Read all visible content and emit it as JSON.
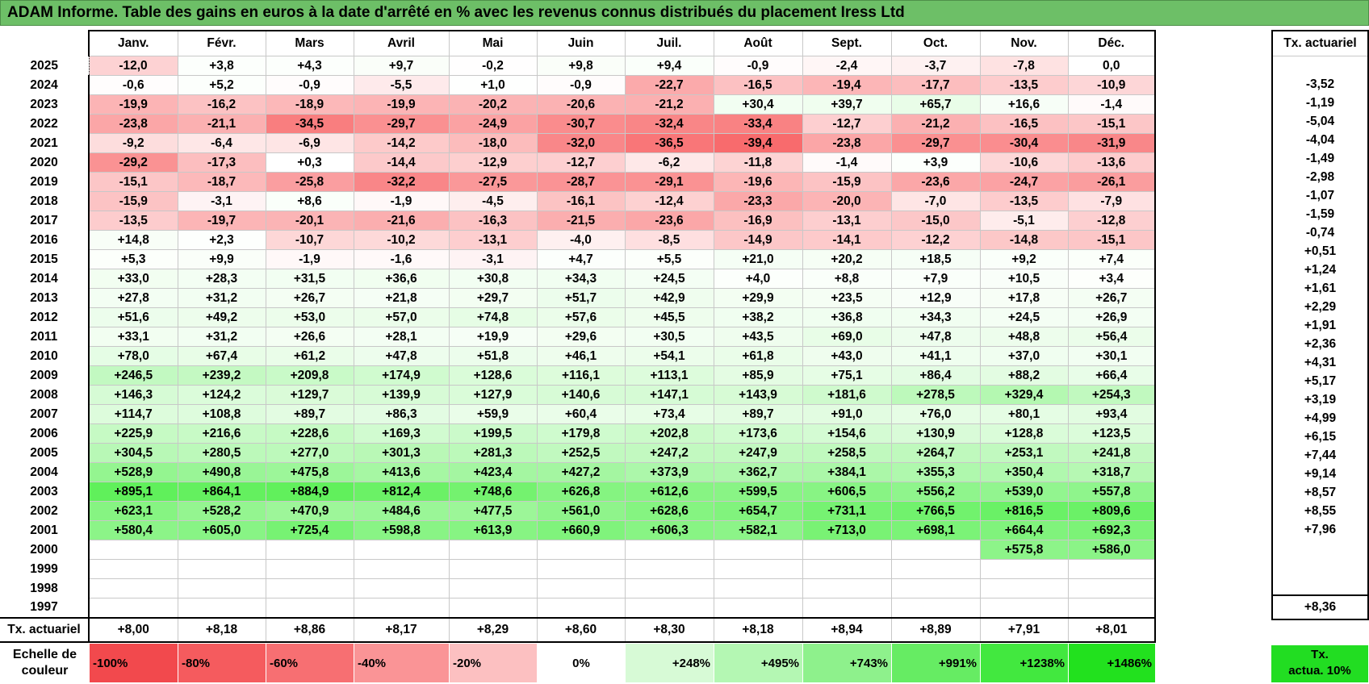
{
  "title": "ADAM Informe. Table des gains en euros à la date d'arrêté en % avec les revenus connus distribués du placement Iress Ltd",
  "months": [
    "Janv.",
    "Févr.",
    "Mars",
    "Avril",
    "Mai",
    "Juin",
    "Juil.",
    "Août",
    "Sept.",
    "Oct.",
    "Nov.",
    "Déc."
  ],
  "tx_header": "Tx. actuariel",
  "rows": [
    {
      "year": "2025",
      "values": [
        "-12,0",
        "+3,8",
        "+4,3",
        "+9,7",
        "-0,2",
        "+9,8",
        "+9,4",
        "-0,9",
        "-2,4",
        "-3,7",
        "-7,8",
        "0,0"
      ],
      "tx": ""
    },
    {
      "year": "2024",
      "values": [
        "-0,6",
        "+5,2",
        "-0,9",
        "-5,5",
        "+1,0",
        "-0,9",
        "-22,7",
        "-16,5",
        "-19,4",
        "-17,7",
        "-13,5",
        "-10,9"
      ],
      "tx": "-3,52"
    },
    {
      "year": "2023",
      "values": [
        "-19,9",
        "-16,2",
        "-18,9",
        "-19,9",
        "-20,2",
        "-20,6",
        "-21,2",
        "+30,4",
        "+39,7",
        "+65,7",
        "+16,6",
        "-1,4"
      ],
      "tx": "-1,19"
    },
    {
      "year": "2022",
      "values": [
        "-23,8",
        "-21,1",
        "-34,5",
        "-29,7",
        "-24,9",
        "-30,7",
        "-32,4",
        "-33,4",
        "-12,7",
        "-21,2",
        "-16,5",
        "-15,1"
      ],
      "tx": "-5,04"
    },
    {
      "year": "2021",
      "values": [
        "-9,2",
        "-6,4",
        "-6,9",
        "-14,2",
        "-18,0",
        "-32,0",
        "-36,5",
        "-39,4",
        "-23,8",
        "-29,7",
        "-30,4",
        "-31,9"
      ],
      "tx": "-4,04"
    },
    {
      "year": "2020",
      "values": [
        "-29,2",
        "-17,3",
        "+0,3",
        "-14,4",
        "-12,9",
        "-12,7",
        "-6,2",
        "-11,8",
        "-1,4",
        "+3,9",
        "-10,6",
        "-13,6"
      ],
      "tx": "-1,49"
    },
    {
      "year": "2019",
      "values": [
        "-15,1",
        "-18,7",
        "-25,8",
        "-32,2",
        "-27,5",
        "-28,7",
        "-29,1",
        "-19,6",
        "-15,9",
        "-23,6",
        "-24,7",
        "-26,1"
      ],
      "tx": "-2,98"
    },
    {
      "year": "2018",
      "values": [
        "-15,9",
        "-3,1",
        "+8,6",
        "-1,9",
        "-4,5",
        "-16,1",
        "-12,4",
        "-23,3",
        "-20,0",
        "-7,0",
        "-13,5",
        "-7,9"
      ],
      "tx": "-1,07"
    },
    {
      "year": "2017",
      "values": [
        "-13,5",
        "-19,7",
        "-20,1",
        "-21,6",
        "-16,3",
        "-21,5",
        "-23,6",
        "-16,9",
        "-13,1",
        "-15,0",
        "-5,1",
        "-12,8"
      ],
      "tx": "-1,59"
    },
    {
      "year": "2016",
      "values": [
        "+14,8",
        "+2,3",
        "-10,7",
        "-10,2",
        "-13,1",
        "-4,0",
        "-8,5",
        "-14,9",
        "-14,1",
        "-12,2",
        "-14,8",
        "-15,1"
      ],
      "tx": "-0,74"
    },
    {
      "year": "2015",
      "values": [
        "+5,3",
        "+9,9",
        "-1,9",
        "-1,6",
        "-3,1",
        "+4,7",
        "+5,5",
        "+21,0",
        "+20,2",
        "+18,5",
        "+9,2",
        "+7,4"
      ],
      "tx": "+0,51"
    },
    {
      "year": "2014",
      "values": [
        "+33,0",
        "+28,3",
        "+31,5",
        "+36,6",
        "+30,8",
        "+34,3",
        "+24,5",
        "+4,0",
        "+8,8",
        "+7,9",
        "+10,5",
        "+3,4"
      ],
      "tx": "+1,24"
    },
    {
      "year": "2013",
      "values": [
        "+27,8",
        "+31,2",
        "+26,7",
        "+21,8",
        "+29,7",
        "+51,7",
        "+42,9",
        "+29,9",
        "+23,5",
        "+12,9",
        "+17,8",
        "+26,7"
      ],
      "tx": "+1,61"
    },
    {
      "year": "2012",
      "values": [
        "+51,6",
        "+49,2",
        "+53,0",
        "+57,0",
        "+74,8",
        "+57,6",
        "+45,5",
        "+38,2",
        "+36,8",
        "+34,3",
        "+24,5",
        "+26,9"
      ],
      "tx": "+2,29"
    },
    {
      "year": "2011",
      "values": [
        "+33,1",
        "+31,2",
        "+26,6",
        "+28,1",
        "+19,9",
        "+29,6",
        "+30,5",
        "+43,5",
        "+69,0",
        "+47,8",
        "+48,8",
        "+56,4"
      ],
      "tx": "+1,91"
    },
    {
      "year": "2010",
      "values": [
        "+78,0",
        "+67,4",
        "+61,2",
        "+47,8",
        "+51,8",
        "+46,1",
        "+54,1",
        "+61,8",
        "+43,0",
        "+41,1",
        "+37,0",
        "+30,1"
      ],
      "tx": "+2,36"
    },
    {
      "year": "2009",
      "values": [
        "+246,5",
        "+239,2",
        "+209,8",
        "+174,9",
        "+128,6",
        "+116,1",
        "+113,1",
        "+85,9",
        "+75,1",
        "+86,4",
        "+88,2",
        "+66,4"
      ],
      "tx": "+4,31"
    },
    {
      "year": "2008",
      "values": [
        "+146,3",
        "+124,2",
        "+129,7",
        "+139,9",
        "+127,9",
        "+140,6",
        "+147,1",
        "+143,9",
        "+181,6",
        "+278,5",
        "+329,4",
        "+254,3"
      ],
      "tx": "+5,17"
    },
    {
      "year": "2007",
      "values": [
        "+114,7",
        "+108,8",
        "+89,7",
        "+86,3",
        "+59,9",
        "+60,4",
        "+73,4",
        "+89,7",
        "+91,0",
        "+76,0",
        "+80,1",
        "+93,4"
      ],
      "tx": "+3,19"
    },
    {
      "year": "2006",
      "values": [
        "+225,9",
        "+216,6",
        "+228,6",
        "+169,3",
        "+199,5",
        "+179,8",
        "+202,8",
        "+173,6",
        "+154,6",
        "+130,9",
        "+128,8",
        "+123,5"
      ],
      "tx": "+4,99"
    },
    {
      "year": "2005",
      "values": [
        "+304,5",
        "+280,5",
        "+277,0",
        "+301,3",
        "+281,3",
        "+252,5",
        "+247,2",
        "+247,9",
        "+258,5",
        "+264,7",
        "+253,1",
        "+241,8"
      ],
      "tx": "+6,15"
    },
    {
      "year": "2004",
      "values": [
        "+528,9",
        "+490,8",
        "+475,8",
        "+413,6",
        "+423,4",
        "+427,2",
        "+373,9",
        "+362,7",
        "+384,1",
        "+355,3",
        "+350,4",
        "+318,7"
      ],
      "tx": "+7,44"
    },
    {
      "year": "2003",
      "values": [
        "+895,1",
        "+864,1",
        "+884,9",
        "+812,4",
        "+748,6",
        "+626,8",
        "+612,6",
        "+599,5",
        "+606,5",
        "+556,2",
        "+539,0",
        "+557,8"
      ],
      "tx": "+9,14"
    },
    {
      "year": "2002",
      "values": [
        "+623,1",
        "+528,2",
        "+470,9",
        "+484,6",
        "+477,5",
        "+561,0",
        "+628,6",
        "+654,7",
        "+731,1",
        "+766,5",
        "+816,5",
        "+809,6"
      ],
      "tx": "+8,57"
    },
    {
      "year": "2001",
      "values": [
        "+580,4",
        "+605,0",
        "+725,4",
        "+598,8",
        "+613,9",
        "+660,9",
        "+606,3",
        "+582,1",
        "+713,0",
        "+698,1",
        "+664,4",
        "+692,3"
      ],
      "tx": "+8,55"
    },
    {
      "year": "2000",
      "values": [
        "",
        "",
        "",
        "",
        "",
        "",
        "",
        "",
        "",
        "",
        "+575,8",
        "+586,0"
      ],
      "tx": "+7,96"
    },
    {
      "year": "1999",
      "values": [
        "",
        "",
        "",
        "",
        "",
        "",
        "",
        "",
        "",
        "",
        "",
        ""
      ],
      "tx": ""
    },
    {
      "year": "1998",
      "values": [
        "",
        "",
        "",
        "",
        "",
        "",
        "",
        "",
        "",
        "",
        "",
        ""
      ],
      "tx": ""
    },
    {
      "year": "1997",
      "values": [
        "",
        "",
        "",
        "",
        "",
        "",
        "",
        "",
        "",
        "",
        "",
        ""
      ],
      "tx": ""
    }
  ],
  "tx_row": {
    "label": "Tx. actuariel",
    "values": [
      "+8,00",
      "+8,18",
      "+8,86",
      "+8,17",
      "+8,29",
      "+8,60",
      "+8,30",
      "+8,18",
      "+8,94",
      "+8,89",
      "+7,91",
      "+8,01"
    ],
    "total": "+8,36"
  },
  "scale": {
    "label_line1": "Echelle de",
    "label_line2": "couleur",
    "steps": [
      "-100%",
      "-80%",
      "-60%",
      "-40%",
      "-20%",
      "0%",
      "+248%",
      "+495%",
      "+743%",
      "+991%",
      "+1238%",
      "+1486%"
    ],
    "step_colors": [
      "#f2494d",
      "#f55b5e",
      "#f76f72",
      "#fa9496",
      "#fcc0c1",
      "#ffffff",
      "#d7fad6",
      "#b4f7b3",
      "#8ef18c",
      "#66ec63",
      "#42e83f",
      "#22e11e"
    ],
    "tx_line1": "Tx.",
    "tx_line2": "actua. 10%"
  },
  "colors": {
    "title_bg": "#6dbf67",
    "neg_max": "#f8696b",
    "pos_max": "#63be7b"
  }
}
